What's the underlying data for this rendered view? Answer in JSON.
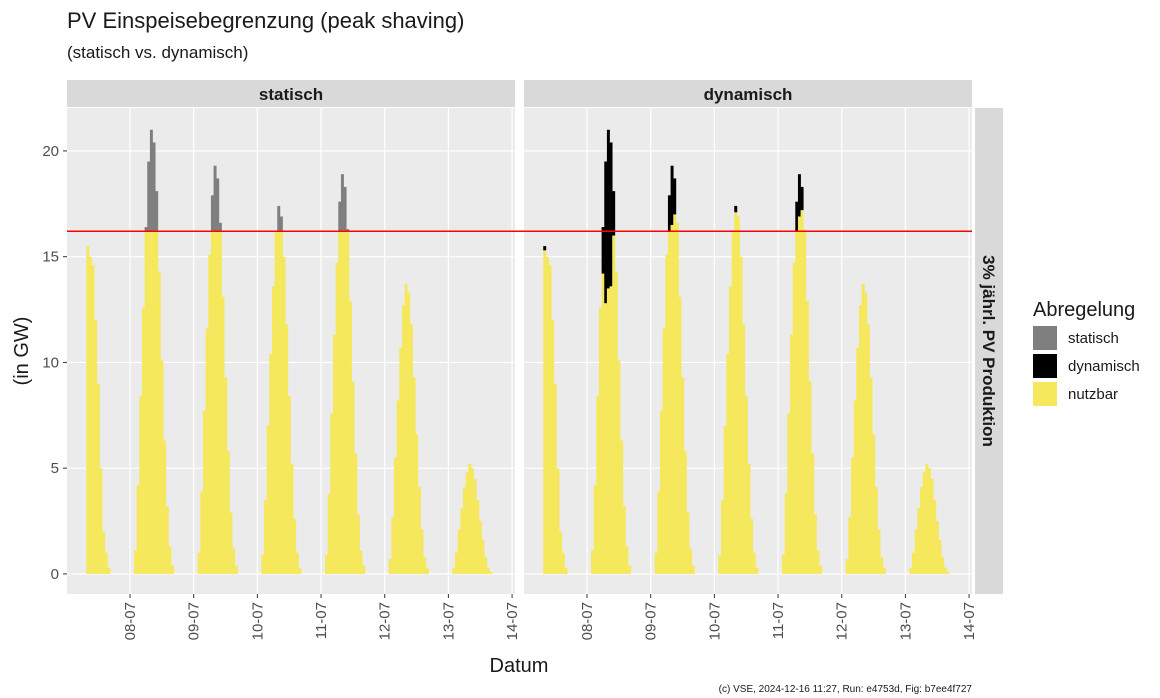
{
  "chart_data": {
    "type": "bar",
    "stacked": true,
    "title": "PV Einspeisebegrenzung (peak shaving)",
    "subtitle": "(statisch vs. dynamisch)",
    "x_label": "Datum",
    "y_label": "(in GW)",
    "legend_title": "Abregelung",
    "row_label": "3% jährl. PV Produktion",
    "caption": "(c) VSE, 2024-12-16 11:27, Run: e4753d, Fig: b7ee4f727",
    "threshold": 16.2,
    "threshold_color": "#ff0000",
    "grid": true,
    "ylim": [
      -0.95,
      22.03
    ],
    "yticks": [
      0,
      5,
      10,
      15,
      20
    ],
    "xlim": [
      0.25,
      169.1
    ],
    "xticks": [
      {
        "value": 24,
        "label": "08-07"
      },
      {
        "value": 48,
        "label": "09-07"
      },
      {
        "value": 72,
        "label": "10-07"
      },
      {
        "value": 96,
        "label": "11-07"
      },
      {
        "value": 120,
        "label": "12-07"
      },
      {
        "value": 144,
        "label": "13-07"
      },
      {
        "value": 168,
        "label": "14-07"
      }
    ],
    "x": [
      8,
      9,
      10,
      11,
      12,
      13,
      14,
      15,
      16,
      26,
      27,
      28,
      29,
      30,
      31,
      32,
      33,
      34,
      35,
      36,
      37,
      38,
      39,
      40,
      50,
      51,
      52,
      53,
      54,
      55,
      56,
      57,
      58,
      59,
      60,
      61,
      62,
      63,
      64,
      74,
      75,
      76,
      77,
      78,
      79,
      80,
      81,
      82,
      83,
      84,
      85,
      86,
      87,
      88,
      98,
      99,
      100,
      101,
      102,
      103,
      104,
      105,
      106,
      107,
      108,
      109,
      110,
      111,
      112,
      122,
      123,
      124,
      125,
      126,
      127,
      128,
      129,
      130,
      131,
      132,
      133,
      134,
      135,
      136,
      146,
      147,
      148,
      149,
      150,
      151,
      152,
      153,
      154,
      155,
      156,
      157,
      158,
      159,
      160
    ],
    "facets": [
      {
        "title": "statisch",
        "series": [
          {
            "name": "nutzbar",
            "color": "#f5e85c",
            "values": [
              15.5,
              15.0,
              14.6,
              12.0,
              9.0,
              5.0,
              2.0,
              1.0,
              0.3,
              1.1,
              4.2,
              8.4,
              12.6,
              16.2,
              16.2,
              16.2,
              16.2,
              16.2,
              14.3,
              10.1,
              6.3,
              3.2,
              1.3,
              0.4,
              1.0,
              3.9,
              7.7,
              11.6,
              15.1,
              16.2,
              16.2,
              16.2,
              16.2,
              13.1,
              9.3,
              5.8,
              2.9,
              1.2,
              0.4,
              0.9,
              3.5,
              7.0,
              10.4,
              13.6,
              16.2,
              16.2,
              16.2,
              15.0,
              11.8,
              8.4,
              5.2,
              2.6,
              1.0,
              0.3,
              0.9,
              3.8,
              7.6,
              11.3,
              14.7,
              16.2,
              16.2,
              16.2,
              16.2,
              12.9,
              9.1,
              5.7,
              2.8,
              1.1,
              0.4,
              0.7,
              2.7,
              5.5,
              8.2,
              10.7,
              12.7,
              13.7,
              13.3,
              11.8,
              9.3,
              6.6,
              4.1,
              2.1,
              0.8,
              0.3,
              0.3,
              1.0,
              2.1,
              3.1,
              4.1,
              4.8,
              5.2,
              5.0,
              4.5,
              3.5,
              2.5,
              1.6,
              0.8,
              0.3,
              0.1
            ]
          },
          {
            "name": "statisch",
            "color": "#7f7f7f",
            "values": [
              0,
              0,
              0,
              0,
              0,
              0,
              0,
              0,
              0,
              0,
              0,
              0,
              0,
              0.2,
              3.3,
              4.8,
              4.2,
              1.9,
              0,
              0,
              0,
              0,
              0,
              0,
              0,
              0,
              0,
              0,
              0,
              1.7,
              3.1,
              2.5,
              0.4,
              0,
              0,
              0,
              0,
              0,
              0,
              0,
              0,
              0,
              0,
              0,
              0,
              1.2,
              0.7,
              0,
              0,
              0,
              0,
              0,
              0,
              0,
              0,
              0,
              0,
              0,
              0,
              1.4,
              2.7,
              2.1,
              0.1,
              0,
              0,
              0,
              0,
              0,
              0,
              0,
              0,
              0,
              0,
              0,
              0,
              0,
              0,
              0,
              0,
              0,
              0,
              0,
              0,
              0,
              0,
              0,
              0,
              0,
              0,
              0,
              0,
              0,
              0,
              0,
              0,
              0,
              0,
              0,
              0
            ]
          }
        ]
      },
      {
        "title": "dynamisch",
        "series": [
          {
            "name": "nutzbar",
            "color": "#f5e85c",
            "values": [
              15.3,
              15.0,
              14.6,
              12.0,
              9.0,
              5.0,
              2.0,
              1.0,
              0.3,
              1.1,
              4.2,
              8.4,
              12.6,
              14.2,
              12.8,
              13.5,
              13.6,
              16.0,
              14.3,
              10.1,
              6.3,
              3.2,
              1.3,
              0.4,
              1.0,
              3.9,
              7.7,
              11.6,
              15.1,
              16.2,
              16.5,
              17.0,
              16.6,
              13.1,
              9.3,
              5.8,
              2.9,
              1.2,
              0.4,
              0.9,
              3.5,
              7.0,
              10.4,
              13.6,
              16.2,
              17.1,
              16.9,
              15.0,
              11.8,
              8.4,
              5.2,
              2.6,
              1.0,
              0.3,
              0.9,
              3.8,
              7.6,
              11.3,
              14.7,
              16.2,
              16.9,
              17.2,
              16.3,
              12.9,
              9.1,
              5.7,
              2.8,
              1.1,
              0.4,
              0.7,
              2.7,
              5.5,
              8.2,
              10.7,
              12.7,
              13.7,
              13.3,
              11.8,
              9.3,
              6.6,
              4.1,
              2.1,
              0.8,
              0.3,
              0.3,
              1.0,
              2.1,
              3.1,
              4.1,
              4.8,
              5.2,
              5.0,
              4.5,
              3.5,
              2.5,
              1.6,
              0.8,
              0.3,
              0.1
            ]
          },
          {
            "name": "dynamisch",
            "color": "#000000",
            "values": [
              0.2,
              0,
              0,
              0,
              0,
              0,
              0,
              0,
              0,
              0,
              0,
              0,
              0,
              2.2,
              6.7,
              7.5,
              6.8,
              2.1,
              0,
              0,
              0,
              0,
              0,
              0,
              0,
              0,
              0,
              0,
              0,
              1.7,
              2.8,
              1.7,
              0,
              0,
              0,
              0,
              0,
              0,
              0,
              0,
              0,
              0,
              0,
              0,
              0,
              0.3,
              0,
              0,
              0,
              0,
              0,
              0,
              0,
              0,
              0,
              0,
              0,
              0,
              0,
              1.4,
              2.0,
              1.1,
              0,
              0,
              0,
              0,
              0,
              0,
              0,
              0,
              0,
              0,
              0,
              0,
              0,
              0,
              0,
              0,
              0,
              0,
              0,
              0,
              0,
              0,
              0,
              0,
              0,
              0,
              0,
              0,
              0,
              0,
              0,
              0,
              0,
              0,
              0,
              0,
              0
            ]
          }
        ]
      }
    ]
  }
}
